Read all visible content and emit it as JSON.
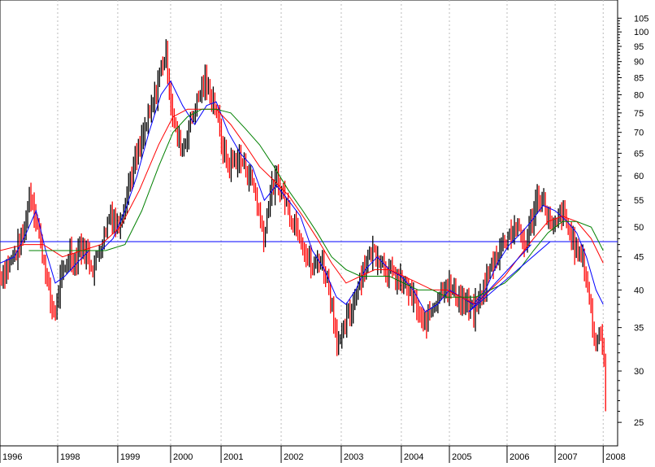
{
  "chart_data": {
    "type": "bar",
    "style": "ohlc-price-bars",
    "scale": "log",
    "grid": true,
    "title": "",
    "xlabel": "",
    "ylabel": "",
    "ylim": [
      23,
      112
    ],
    "xlim": [
      1996.0,
      2008.85
    ],
    "y_ticks": [
      25,
      30,
      35,
      40,
      45,
      50,
      55,
      60,
      65,
      70,
      75,
      80,
      85,
      90,
      95,
      100,
      105
    ],
    "x_ticks": [
      {
        "label": "1996",
        "x": 1996.0
      },
      {
        "label": "1998",
        "x": 1997.2
      },
      {
        "label": "1999",
        "x": 1998.45
      },
      {
        "label": "2000",
        "x": 1999.55
      },
      {
        "label": "2001",
        "x": 2000.6
      },
      {
        "label": "2002",
        "x": 2001.85
      },
      {
        "label": "2003",
        "x": 2003.1
      },
      {
        "label": "2004",
        "x": 2004.35
      },
      {
        "label": "2005",
        "x": 2005.35
      },
      {
        "label": "2006",
        "x": 2006.55
      },
      {
        "label": "2007",
        "x": 2007.55
      },
      {
        "label": "2008",
        "x": 2008.55
      }
    ],
    "price_path": [
      [
        1996.0,
        42
      ],
      [
        1996.2,
        44
      ],
      [
        1996.35,
        46
      ],
      [
        1996.5,
        49
      ],
      [
        1996.62,
        57
      ],
      [
        1996.75,
        52
      ],
      [
        1996.85,
        47
      ],
      [
        1996.95,
        43
      ],
      [
        1997.05,
        38
      ],
      [
        1997.15,
        37
      ],
      [
        1997.25,
        41
      ],
      [
        1997.35,
        43
      ],
      [
        1997.45,
        46
      ],
      [
        1997.55,
        44
      ],
      [
        1997.65,
        47
      ],
      [
        1997.75,
        46
      ],
      [
        1997.85,
        45
      ],
      [
        1997.95,
        43
      ],
      [
        1998.05,
        46
      ],
      [
        1998.15,
        48
      ],
      [
        1998.3,
        53
      ],
      [
        1998.45,
        50
      ],
      [
        1998.6,
        55
      ],
      [
        1998.75,
        61
      ],
      [
        1998.9,
        66
      ],
      [
        1999.05,
        72
      ],
      [
        1999.2,
        78
      ],
      [
        1999.35,
        88
      ],
      [
        1999.45,
        93
      ],
      [
        1999.55,
        79
      ],
      [
        1999.65,
        70
      ],
      [
        1999.8,
        66
      ],
      [
        1999.95,
        72
      ],
      [
        2000.1,
        78
      ],
      [
        2000.25,
        84
      ],
      [
        2000.4,
        80
      ],
      [
        2000.5,
        76
      ],
      [
        2000.6,
        68
      ],
      [
        2000.75,
        62
      ],
      [
        2000.9,
        64
      ],
      [
        2001.05,
        63
      ],
      [
        2001.2,
        60
      ],
      [
        2001.3,
        57
      ],
      [
        2001.4,
        52
      ],
      [
        2001.5,
        48
      ],
      [
        2001.6,
        56
      ],
      [
        2001.75,
        59
      ],
      [
        2001.9,
        56
      ],
      [
        2002.05,
        52
      ],
      [
        2002.2,
        50
      ],
      [
        2002.35,
        46
      ],
      [
        2002.5,
        43
      ],
      [
        2002.65,
        45
      ],
      [
        2002.8,
        42
      ],
      [
        2002.9,
        38
      ],
      [
        2003.0,
        34
      ],
      [
        2003.1,
        33
      ],
      [
        2003.2,
        36
      ],
      [
        2003.3,
        37
      ],
      [
        2003.45,
        41
      ],
      [
        2003.6,
        44
      ],
      [
        2003.75,
        46
      ],
      [
        2003.9,
        45
      ],
      [
        2004.05,
        43
      ],
      [
        2004.2,
        42
      ],
      [
        2004.35,
        41
      ],
      [
        2004.5,
        40
      ],
      [
        2004.65,
        38
      ],
      [
        2004.8,
        35
      ],
      [
        2004.95,
        37
      ],
      [
        2005.1,
        39
      ],
      [
        2005.25,
        41
      ],
      [
        2005.4,
        40
      ],
      [
        2005.55,
        39
      ],
      [
        2005.7,
        38
      ],
      [
        2005.85,
        37
      ],
      [
        2006.0,
        39
      ],
      [
        2006.15,
        42
      ],
      [
        2006.3,
        45
      ],
      [
        2006.45,
        47
      ],
      [
        2006.6,
        49
      ],
      [
        2006.75,
        50
      ],
      [
        2006.9,
        47
      ],
      [
        2007.0,
        49
      ],
      [
        2007.1,
        53
      ],
      [
        2007.2,
        56
      ],
      [
        2007.3,
        55
      ],
      [
        2007.4,
        52
      ],
      [
        2007.5,
        49
      ],
      [
        2007.6,
        51
      ],
      [
        2007.7,
        53
      ],
      [
        2007.8,
        50
      ],
      [
        2007.9,
        48
      ],
      [
        2008.0,
        46
      ],
      [
        2008.1,
        45
      ],
      [
        2008.2,
        42
      ],
      [
        2008.3,
        37
      ],
      [
        2008.37,
        33
      ],
      [
        2008.45,
        34
      ],
      [
        2008.5,
        35
      ],
      [
        2008.55,
        33
      ],
      [
        2008.6,
        27
      ]
    ],
    "overlays": [
      {
        "color": "#0000ff",
        "type": "moving-average",
        "points": [
          [
            1996.0,
            44
          ],
          [
            1996.3,
            45
          ],
          [
            1996.55,
            49
          ],
          [
            1996.75,
            53
          ],
          [
            1996.95,
            46
          ],
          [
            1997.15,
            41
          ],
          [
            1997.35,
            42
          ],
          [
            1997.6,
            44
          ],
          [
            1997.85,
            46
          ],
          [
            1998.1,
            46
          ],
          [
            1998.35,
            48
          ],
          [
            1998.6,
            53
          ],
          [
            1998.85,
            60
          ],
          [
            1999.1,
            70
          ],
          [
            1999.35,
            80
          ],
          [
            1999.55,
            84
          ],
          [
            1999.8,
            77
          ],
          [
            2000.05,
            72
          ],
          [
            2000.3,
            77
          ],
          [
            2000.5,
            78
          ],
          [
            2000.75,
            70
          ],
          [
            2001.0,
            65
          ],
          [
            2001.25,
            62
          ],
          [
            2001.5,
            55
          ],
          [
            2001.75,
            58
          ],
          [
            2002.0,
            55
          ],
          [
            2002.25,
            52
          ],
          [
            2002.5,
            46
          ],
          [
            2002.75,
            43
          ],
          [
            2003.0,
            39
          ],
          [
            2003.2,
            38
          ],
          [
            2003.4,
            40
          ],
          [
            2003.6,
            43
          ],
          [
            2003.85,
            45
          ],
          [
            2004.1,
            43
          ],
          [
            2004.35,
            42
          ],
          [
            2004.6,
            40
          ],
          [
            2004.85,
            37
          ],
          [
            2005.1,
            38
          ],
          [
            2005.35,
            40
          ],
          [
            2005.6,
            39
          ],
          [
            2005.85,
            38
          ],
          [
            2006.1,
            40
          ],
          [
            2006.35,
            44
          ],
          [
            2006.6,
            47
          ],
          [
            2006.85,
            49
          ],
          [
            2007.05,
            51
          ],
          [
            2007.3,
            54
          ],
          [
            2007.55,
            53
          ],
          [
            2007.8,
            51
          ],
          [
            2008.0,
            49
          ],
          [
            2008.2,
            45
          ],
          [
            2008.4,
            40
          ],
          [
            2008.55,
            38
          ]
        ]
      },
      {
        "color": "#ff0000",
        "type": "moving-average",
        "points": [
          [
            1996.0,
            46
          ],
          [
            1996.5,
            47
          ],
          [
            1996.9,
            47
          ],
          [
            1997.3,
            45
          ],
          [
            1997.7,
            46
          ],
          [
            1998.1,
            47
          ],
          [
            1998.5,
            50
          ],
          [
            1998.9,
            57
          ],
          [
            1999.3,
            67
          ],
          [
            1999.6,
            74
          ],
          [
            1999.9,
            76
          ],
          [
            2000.2,
            76
          ],
          [
            2000.5,
            76
          ],
          [
            2000.8,
            72
          ],
          [
            2001.1,
            67
          ],
          [
            2001.4,
            62
          ],
          [
            2001.7,
            59
          ],
          [
            2002.0,
            56
          ],
          [
            2002.3,
            52
          ],
          [
            2002.6,
            48
          ],
          [
            2002.9,
            44
          ],
          [
            2003.2,
            41
          ],
          [
            2003.5,
            42
          ],
          [
            2003.8,
            43
          ],
          [
            2004.1,
            43
          ],
          [
            2004.4,
            42
          ],
          [
            2004.7,
            41
          ],
          [
            2005.0,
            40
          ],
          [
            2005.3,
            40
          ],
          [
            2005.6,
            39
          ],
          [
            2005.9,
            38
          ],
          [
            2006.2,
            40
          ],
          [
            2006.5,
            42
          ],
          [
            2006.8,
            45
          ],
          [
            2007.1,
            48
          ],
          [
            2007.4,
            51
          ],
          [
            2007.7,
            52
          ],
          [
            2008.0,
            51
          ],
          [
            2008.3,
            48
          ],
          [
            2008.55,
            44
          ]
        ]
      },
      {
        "color": "#008000",
        "type": "moving-average",
        "points": [
          [
            1996.6,
            46
          ],
          [
            1997.0,
            46
          ],
          [
            1997.4,
            46
          ],
          [
            1997.8,
            46
          ],
          [
            1998.2,
            46
          ],
          [
            1998.6,
            47
          ],
          [
            1998.95,
            53
          ],
          [
            1999.3,
            62
          ],
          [
            1999.6,
            70
          ],
          [
            1999.9,
            74
          ],
          [
            2000.2,
            76
          ],
          [
            2000.5,
            76
          ],
          [
            2000.8,
            75
          ],
          [
            2001.1,
            71
          ],
          [
            2001.4,
            67
          ],
          [
            2001.7,
            62
          ],
          [
            2002.0,
            57
          ],
          [
            2002.3,
            53
          ],
          [
            2002.6,
            49
          ],
          [
            2002.9,
            45
          ],
          [
            2003.2,
            43
          ],
          [
            2003.5,
            42
          ],
          [
            2003.8,
            42
          ],
          [
            2004.1,
            42
          ],
          [
            2004.4,
            41
          ],
          [
            2004.7,
            40
          ],
          [
            2005.0,
            40
          ],
          [
            2005.3,
            39
          ],
          [
            2005.6,
            39
          ],
          [
            2005.9,
            39
          ],
          [
            2006.2,
            40
          ],
          [
            2006.5,
            41
          ],
          [
            2006.8,
            43
          ],
          [
            2007.1,
            46
          ],
          [
            2007.4,
            49
          ],
          [
            2007.7,
            51
          ],
          [
            2008.0,
            51
          ],
          [
            2008.3,
            50
          ],
          [
            2008.55,
            46
          ]
        ]
      },
      {
        "color": "#0000ff",
        "type": "horizontal-line",
        "y": 47.5
      },
      {
        "color": "#0000ff",
        "type": "trendline",
        "points": [
          [
            2005.75,
            37
          ],
          [
            2007.45,
            47.5
          ]
        ]
      },
      {
        "color": "#0000ff",
        "type": "trendline",
        "points": [
          [
            2005.75,
            37
          ],
          [
            2007.05,
            47
          ]
        ]
      }
    ]
  }
}
